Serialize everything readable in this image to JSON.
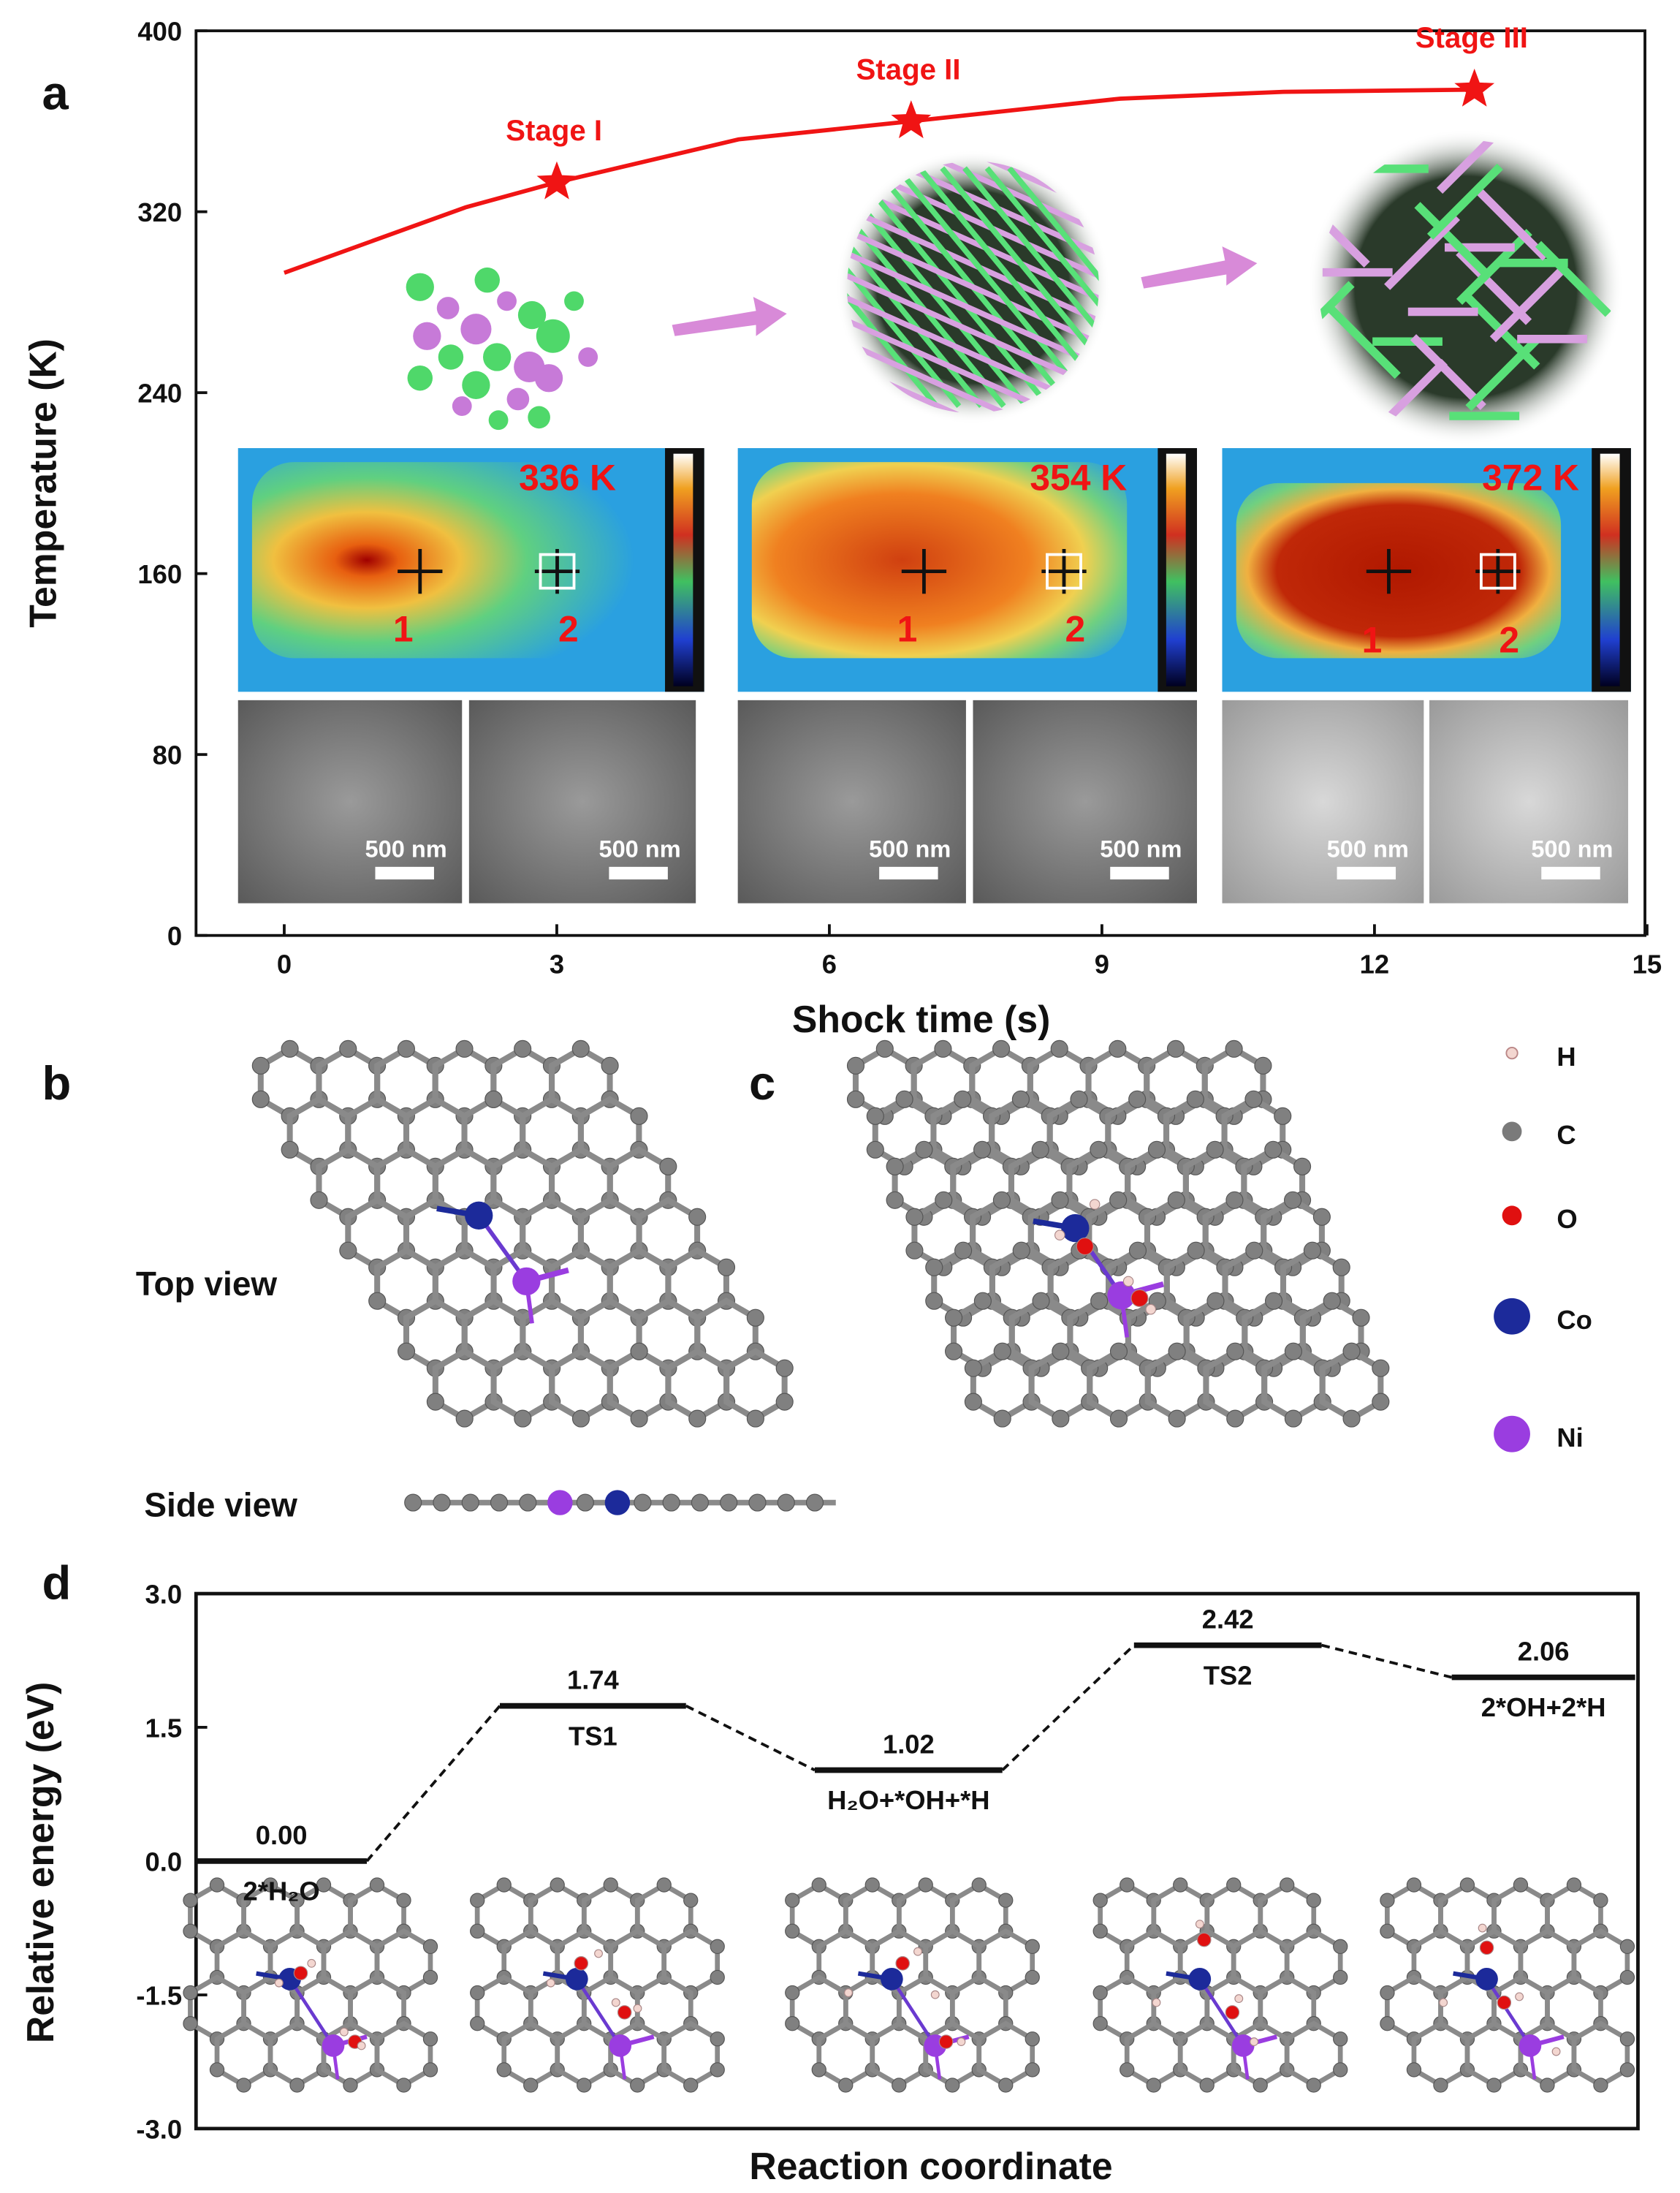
{
  "panels": {
    "a": "a",
    "b": "b",
    "c": "c",
    "d": "d"
  },
  "chart_data": [
    {
      "type": "line",
      "panel": "a",
      "xlabel": "Shock time (s)",
      "ylabel": "Temperature (K)",
      "xlim": [
        0,
        15
      ],
      "ylim": [
        0,
        400
      ],
      "xticks": [
        "0",
        "3",
        "6",
        "9",
        "12",
        "15"
      ],
      "yticks": [
        "0",
        "80",
        "160",
        "240",
        "320",
        "400"
      ],
      "color": "#f01414",
      "x": [
        0,
        2,
        3,
        5,
        6.9,
        9.2,
        11,
        13.1
      ],
      "y": [
        293,
        322,
        333,
        352,
        360,
        370,
        373,
        374
      ],
      "stages": [
        {
          "label": "Stage I",
          "x": 3,
          "y": 333
        },
        {
          "label": "Stage II",
          "x": 6.9,
          "y": 360
        },
        {
          "label": "Stage III",
          "x": 13.1,
          "y": 374
        }
      ],
      "thermal_images": [
        {
          "temperature": "336 K",
          "points": [
            "1",
            "2"
          ]
        },
        {
          "temperature": "354 K",
          "points": [
            "1",
            "2"
          ]
        },
        {
          "temperature": "372 K",
          "points": [
            "1",
            "2"
          ]
        }
      ],
      "scale_bar": "500 nm"
    },
    {
      "type": "line",
      "panel": "d",
      "xlabel": "Reaction coordinate",
      "ylabel": "Relative energy (eV)",
      "ylim": [
        -3.0,
        3.0
      ],
      "yticks": [
        "-3.0",
        "-1.5",
        "0.0",
        "1.5",
        "3.0"
      ],
      "states": [
        {
          "label": "2*H₂O",
          "energy": 0.0,
          "value_label": "0.00"
        },
        {
          "label": "TS1",
          "energy": 1.74,
          "value_label": "1.74"
        },
        {
          "label": "H₂O+*OH+*H",
          "energy": 1.02,
          "value_label": "1.02"
        },
        {
          "label": "TS2",
          "energy": 2.42,
          "value_label": "2.42"
        },
        {
          "label": "2*OH+2*H",
          "energy": 2.06,
          "value_label": "2.06"
        }
      ]
    }
  ],
  "panel_b": {
    "top_view": "Top view",
    "side_view": "Side view"
  },
  "legend": [
    {
      "label": "H",
      "color": "#f3d6d0"
    },
    {
      "label": "C",
      "color": "#7a7a7a"
    },
    {
      "label": "O",
      "color": "#e01010"
    },
    {
      "label": "Co",
      "color": "#1c2a9a"
    },
    {
      "label": "Ni",
      "color": "#9a3de0"
    }
  ]
}
